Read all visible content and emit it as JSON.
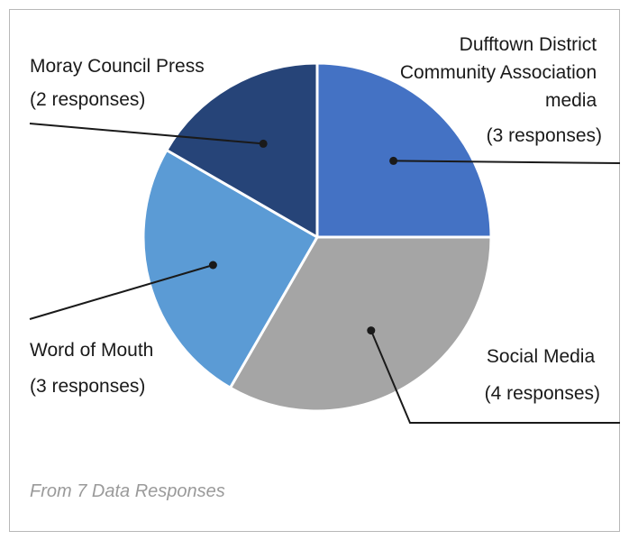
{
  "chart_data": {
    "type": "pie",
    "slices": [
      {
        "name": "Dufftown District Community Association media",
        "value": 3,
        "responses_label": "(3 responses)",
        "color": "#4472C4",
        "label_lines": [
          "Dufftown District",
          "Community Association",
          "media"
        ]
      },
      {
        "name": "Social Media",
        "value": 4,
        "responses_label": "(4 responses)",
        "color": "#A5A5A5",
        "label_lines": [
          "Social Media"
        ]
      },
      {
        "name": "Word of Mouth",
        "value": 3,
        "responses_label": "(3 responses)",
        "color": "#5B9BD5",
        "label_lines": [
          "Word of Mouth"
        ]
      },
      {
        "name": "Moray Council Press",
        "value": 2,
        "responses_label": "(2 responses)",
        "color": "#264478",
        "label_lines": [
          "Moray Council Press"
        ]
      }
    ],
    "start_angle_deg": 0,
    "direction": "clockwise"
  },
  "footer": "From 7 Data Responses"
}
